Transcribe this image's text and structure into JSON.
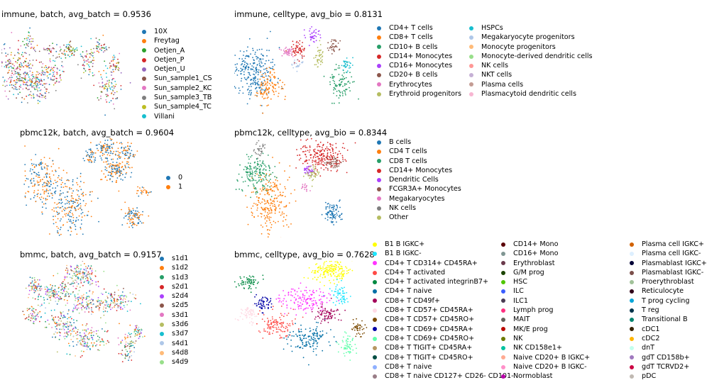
{
  "chart_data": [
    {
      "type": "scatter",
      "title": "immune, batch, avg_batch = 0.9536",
      "legend": [
        {
          "label": "10X",
          "color": "#1f77b4"
        },
        {
          "label": "Freytag",
          "color": "#ff7f0e"
        },
        {
          "label": "Oetjen_A",
          "color": "#2ca02c"
        },
        {
          "label": "Oetjen_P",
          "color": "#d62728"
        },
        {
          "label": "Oetjen_U",
          "color": "#9467bd"
        },
        {
          "label": "Sun_sample1_CS",
          "color": "#8c564b"
        },
        {
          "label": "Sun_sample2_KC",
          "color": "#e377c2"
        },
        {
          "label": "Sun_sample3_TB",
          "color": "#7f7f7f"
        },
        {
          "label": "Sun_sample4_TC",
          "color": "#bcbd22"
        },
        {
          "label": "Villani",
          "color": "#17becf"
        }
      ]
    },
    {
      "type": "scatter",
      "title": "immune, celltype, avg_bio = 0.8131",
      "legend": [
        {
          "label": "CD4+ T cells",
          "color": "#1f77b4"
        },
        {
          "label": "CD8+ T cells",
          "color": "#ff7f0e"
        },
        {
          "label": "CD10+ B cells",
          "color": "#279e68"
        },
        {
          "label": "CD14+ Monocytes",
          "color": "#d62728"
        },
        {
          "label": "CD16+ Monocytes",
          "color": "#aa40fc"
        },
        {
          "label": "CD20+ B cells",
          "color": "#8c564b"
        },
        {
          "label": "Erythrocytes",
          "color": "#e377c2"
        },
        {
          "label": "Erythroid progenitors",
          "color": "#b5bd61"
        },
        {
          "label": "HSPCs",
          "color": "#17becf"
        },
        {
          "label": "Megakaryocyte progenitors",
          "color": "#aec7e8"
        },
        {
          "label": "Monocyte progenitors",
          "color": "#ffbb78"
        },
        {
          "label": "Monocyte-derived dendritic cells",
          "color": "#98df8a"
        },
        {
          "label": "NK cells",
          "color": "#ff9896"
        },
        {
          "label": "NKT cells",
          "color": "#c5b0d5"
        },
        {
          "label": "Plasma cells",
          "color": "#c49c94"
        },
        {
          "label": "Plasmacytoid dendritic cells",
          "color": "#f7b6d2"
        }
      ]
    },
    {
      "type": "scatter",
      "title": "pbmc12k, batch, avg_batch = 0.9604",
      "legend": [
        {
          "label": "0",
          "color": "#1f77b4"
        },
        {
          "label": "1",
          "color": "#ff7f0e"
        }
      ]
    },
    {
      "type": "scatter",
      "title": "pbmc12k, celltype, avg_bio = 0.8344",
      "legend": [
        {
          "label": "B cells",
          "color": "#1f77b4"
        },
        {
          "label": "CD4 T cells",
          "color": "#ff7f0e"
        },
        {
          "label": "CD8 T cells",
          "color": "#279e68"
        },
        {
          "label": "CD14+ Monocytes",
          "color": "#d62728"
        },
        {
          "label": "Dendritic Cells",
          "color": "#aa40fc"
        },
        {
          "label": "FCGR3A+ Monocytes",
          "color": "#8c564b"
        },
        {
          "label": "Megakaryocytes",
          "color": "#e377c2"
        },
        {
          "label": "NK cells",
          "color": "#7f7f7f"
        },
        {
          "label": "Other",
          "color": "#b5bd61"
        }
      ]
    },
    {
      "type": "scatter",
      "title": "bmmc, batch, avg_batch = 0.9157",
      "legend": [
        {
          "label": "s1d1",
          "color": "#1f77b4"
        },
        {
          "label": "s1d2",
          "color": "#ff7f0e"
        },
        {
          "label": "s1d3",
          "color": "#279e68"
        },
        {
          "label": "s2d1",
          "color": "#d62728"
        },
        {
          "label": "s2d4",
          "color": "#aa40fc"
        },
        {
          "label": "s2d5",
          "color": "#8c564b"
        },
        {
          "label": "s3d1",
          "color": "#e377c2"
        },
        {
          "label": "s3d6",
          "color": "#b5bd61"
        },
        {
          "label": "s3d7",
          "color": "#17becf"
        },
        {
          "label": "s4d1",
          "color": "#aec7e8"
        },
        {
          "label": "s4d8",
          "color": "#ffbb78"
        },
        {
          "label": "s4d9",
          "color": "#98df8a"
        }
      ]
    },
    {
      "type": "scatter",
      "title": "bmmc, celltype, avg_bio = 0.7628",
      "legend": [
        {
          "label": "B1 B IGKC+",
          "color": "#ffff00"
        },
        {
          "label": "B1 B IGKC-",
          "color": "#1ce6ff"
        },
        {
          "label": "CD4+ T CD314+ CD45RA+",
          "color": "#ff34ff"
        },
        {
          "label": "CD4+ T activated",
          "color": "#ff4a46"
        },
        {
          "label": "CD4+ T activated integrinB7+",
          "color": "#008941"
        },
        {
          "label": "CD4+ T naive",
          "color": "#006fa6"
        },
        {
          "label": "CD8+ T CD49f+",
          "color": "#a30059"
        },
        {
          "label": "CD8+ T CD57+ CD45RA+",
          "color": "#ffdbe5"
        },
        {
          "label": "CD8+ T CD57+ CD45RO+",
          "color": "#7a4900"
        },
        {
          "label": "CD8+ T CD69+ CD45RA+",
          "color": "#0000a6"
        },
        {
          "label": "CD8+ T CD69+ CD45RO+",
          "color": "#63ffac"
        },
        {
          "label": "CD8+ T TIGIT+ CD45RA+",
          "color": "#b79762"
        },
        {
          "label": "CD8+ T TIGIT+ CD45RO+",
          "color": "#004d43"
        },
        {
          "label": "CD8+ T naive",
          "color": "#8fb0ff"
        },
        {
          "label": "CD8+ T naive CD127+ CD26- CD101-",
          "color": "#997d87"
        },
        {
          "label": "CD14+ Mono",
          "color": "#5a0007"
        },
        {
          "label": "CD16+ Mono",
          "color": "#809693"
        },
        {
          "label": "Erythroblast",
          "color": "#6a3a4c"
        },
        {
          "label": "G/M prog",
          "color": "#1b4400"
        },
        {
          "label": "HSC",
          "color": "#4fc601"
        },
        {
          "label": "ILC",
          "color": "#3b5dff"
        },
        {
          "label": "ILC1",
          "color": "#4a3b53"
        },
        {
          "label": "Lymph prog",
          "color": "#ff2f80"
        },
        {
          "label": "MAIT",
          "color": "#61615a"
        },
        {
          "label": "MK/E prog",
          "color": "#ba0900"
        },
        {
          "label": "NK",
          "color": "#6b7900"
        },
        {
          "label": "NK CD158e1+",
          "color": "#00c2a0"
        },
        {
          "label": "Naive CD20+ B IGKC+",
          "color": "#ffaa92"
        },
        {
          "label": "Naive CD20+ B IGKC-",
          "color": "#ff90c9"
        },
        {
          "label": "Normoblast",
          "color": "#b903aa"
        },
        {
          "label": "Plasma cell IGKC+",
          "color": "#d16100"
        },
        {
          "label": "Plasma cell IGKC-",
          "color": "#ddefff"
        },
        {
          "label": "Plasmablast IGKC+",
          "color": "#000035"
        },
        {
          "label": "Plasmablast IGKC-",
          "color": "#7b4f4b"
        },
        {
          "label": "Proerythroblast",
          "color": "#a1c299"
        },
        {
          "label": "Reticulocyte",
          "color": "#300018"
        },
        {
          "label": "T prog cycling",
          "color": "#0aa6d8"
        },
        {
          "label": "T reg",
          "color": "#013349"
        },
        {
          "label": "Transitional B",
          "color": "#00846f"
        },
        {
          "label": "cDC1",
          "color": "#372101"
        },
        {
          "label": "cDC2",
          "color": "#ffb500"
        },
        {
          "label": "dnT",
          "color": "#c2ffed"
        },
        {
          "label": "gdT CD158b+",
          "color": "#a079bf"
        },
        {
          "label": "gdT TCRVD2+",
          "color": "#cc0744"
        },
        {
          "label": "pDC",
          "color": "#c0b9b2"
        }
      ]
    }
  ]
}
